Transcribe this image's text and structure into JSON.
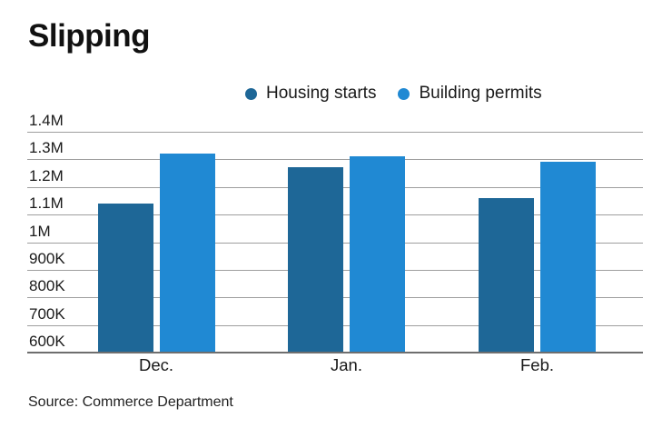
{
  "header": {
    "title": "Slipping"
  },
  "footer": {
    "source": "Source: Commerce Department"
  },
  "chart_data": {
    "type": "bar",
    "title": "Slipping",
    "categories": [
      "Dec.",
      "Jan.",
      "Feb."
    ],
    "series": [
      {
        "name": "Housing starts",
        "color": "#1e6797",
        "values": [
          1140000,
          1270000,
          1160000
        ]
      },
      {
        "name": "Building permits",
        "color": "#2089d3",
        "values": [
          1320000,
          1310000,
          1290000
        ]
      }
    ],
    "yticks": [
      {
        "label": "1.4M",
        "value": 1400000
      },
      {
        "label": "1.3M",
        "value": 1300000
      },
      {
        "label": "1.2M",
        "value": 1200000
      },
      {
        "label": "1.1M",
        "value": 1100000
      },
      {
        "label": "1M",
        "value": 1000000
      },
      {
        "label": "900K",
        "value": 900000
      },
      {
        "label": "800K",
        "value": 800000
      },
      {
        "label": "700K",
        "value": 700000
      },
      {
        "label": "600K",
        "value": 600000
      }
    ],
    "ylim": [
      600000,
      1400000
    ],
    "xlabel": "",
    "ylabel": "",
    "grid": true,
    "legend_position": "top",
    "source": "Source: Commerce Department"
  }
}
